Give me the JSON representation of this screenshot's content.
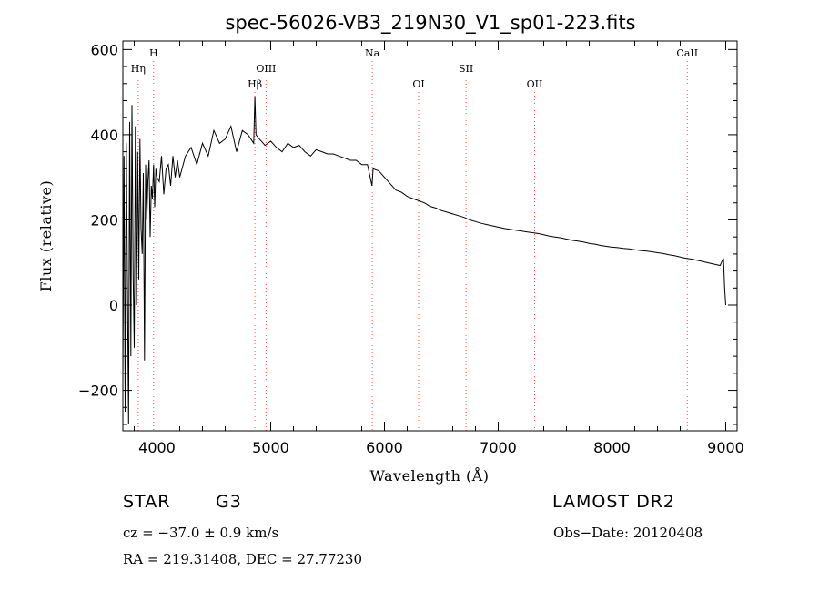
{
  "chart_data": {
    "type": "line",
    "title": "spec-56026-VB3_219N30_V1_sp01-223.fits",
    "xlabel": "Wavelength (Å)",
    "ylabel": "Flux (relative)",
    "xlim": [
      3700,
      9100
    ],
    "ylim": [
      -295,
      620
    ],
    "xticks": [
      4000,
      5000,
      6000,
      7000,
      8000,
      9000
    ],
    "yticks": [
      -200,
      0,
      200,
      400,
      600
    ],
    "xtick_labels": [
      "4000",
      "5000",
      "6000",
      "7000",
      "8000",
      "9000"
    ],
    "ytick_labels": [
      "−200",
      "0",
      "200",
      "400",
      "600"
    ],
    "grid": false,
    "line_color": "#000000",
    "marker_color": "#ff4d4d",
    "series": [
      {
        "x": [
          3700,
          3710,
          3720,
          3730,
          3740,
          3750,
          3760,
          3770,
          3780,
          3790,
          3800,
          3810,
          3820,
          3830,
          3840,
          3850,
          3860,
          3870,
          3880,
          3890,
          3900,
          3910,
          3920,
          3930,
          3940,
          3950,
          3960,
          3970,
          3980,
          3990,
          4000,
          4020,
          4040,
          4060,
          4080,
          4100,
          4120,
          4140,
          4160,
          4180,
          4200,
          4250,
          4300,
          4350,
          4400,
          4450,
          4500,
          4550,
          4600,
          4650,
          4700,
          4750,
          4800,
          4850,
          4861,
          4870,
          4900,
          4950,
          5000,
          5050,
          5100,
          5150,
          5200,
          5250,
          5300,
          5350,
          5400,
          5450,
          5500,
          5550,
          5600,
          5650,
          5700,
          5750,
          5800,
          5850,
          5890,
          5900,
          5950,
          6000,
          6050,
          6100,
          6150,
          6200,
          6250,
          6300,
          6350,
          6400,
          6450,
          6500,
          6550,
          6600,
          6650,
          6700,
          6750,
          6800,
          6850,
          6900,
          6950,
          7000,
          7050,
          7100,
          7150,
          7200,
          7250,
          7300,
          7350,
          7400,
          7450,
          7500,
          7550,
          7600,
          7650,
          7700,
          7750,
          7800,
          7850,
          7900,
          7950,
          8000,
          8050,
          8100,
          8150,
          8200,
          8250,
          8300,
          8350,
          8400,
          8450,
          8500,
          8550,
          8600,
          8650,
          8700,
          8750,
          8800,
          8850,
          8900,
          8950,
          8980,
          8990,
          9000
        ],
        "y": [
          -170,
          350,
          -250,
          380,
          60,
          -280,
          430,
          -120,
          470,
          70,
          -100,
          420,
          0,
          360,
          60,
          390,
          180,
          120,
          310,
          -130,
          330,
          200,
          290,
          340,
          160,
          280,
          250,
          330,
          230,
          320,
          300,
          290,
          350,
          260,
          320,
          330,
          280,
          350,
          300,
          340,
          300,
          350,
          370,
          330,
          380,
          350,
          410,
          380,
          390,
          420,
          360,
          410,
          400,
          380,
          490,
          400,
          390,
          375,
          385,
          370,
          360,
          380,
          370,
          375,
          360,
          350,
          365,
          360,
          355,
          355,
          350,
          345,
          340,
          340,
          330,
          330,
          280,
          320,
          315,
          300,
          285,
          270,
          265,
          255,
          250,
          245,
          240,
          232,
          228,
          222,
          218,
          214,
          210,
          206,
          200,
          196,
          192,
          189,
          186,
          183,
          180,
          178,
          176,
          174,
          172,
          170,
          168,
          165,
          162,
          160,
          158,
          155,
          152,
          150,
          148,
          145,
          143,
          140,
          138,
          136,
          135,
          133,
          132,
          130,
          128,
          127,
          125,
          123,
          121,
          118,
          116,
          113,
          110,
          108,
          105,
          102,
          99,
          96,
          93,
          110,
          40,
          0
        ]
      }
    ],
    "spectral_lines": [
      {
        "label": "H",
        "wl": 3970,
        "row": 1
      },
      {
        "label": "Hη",
        "wl": 3835,
        "row": 2
      },
      {
        "label": "OIII",
        "wl": 4959,
        "row": 2
      },
      {
        "label": "Hβ",
        "wl": 4861,
        "row": 3
      },
      {
        "label": "Na",
        "wl": 5893,
        "row": 1
      },
      {
        "label": "SII",
        "wl": 6717,
        "row": 2
      },
      {
        "label": "OI",
        "wl": 6300,
        "row": 3
      },
      {
        "label": "OII",
        "wl": 7320,
        "row": 3
      },
      {
        "label": "CaII",
        "wl": 8662,
        "row": 1
      }
    ]
  },
  "info": {
    "object_type": "STAR",
    "subclass": "G3",
    "survey": "LAMOST DR2",
    "redshift": "cz = −37.0 ± 0.9 km/s",
    "obs_date": "Obs−Date: 20120408",
    "coords": "RA = 219.31408, DEC =  27.77230"
  }
}
